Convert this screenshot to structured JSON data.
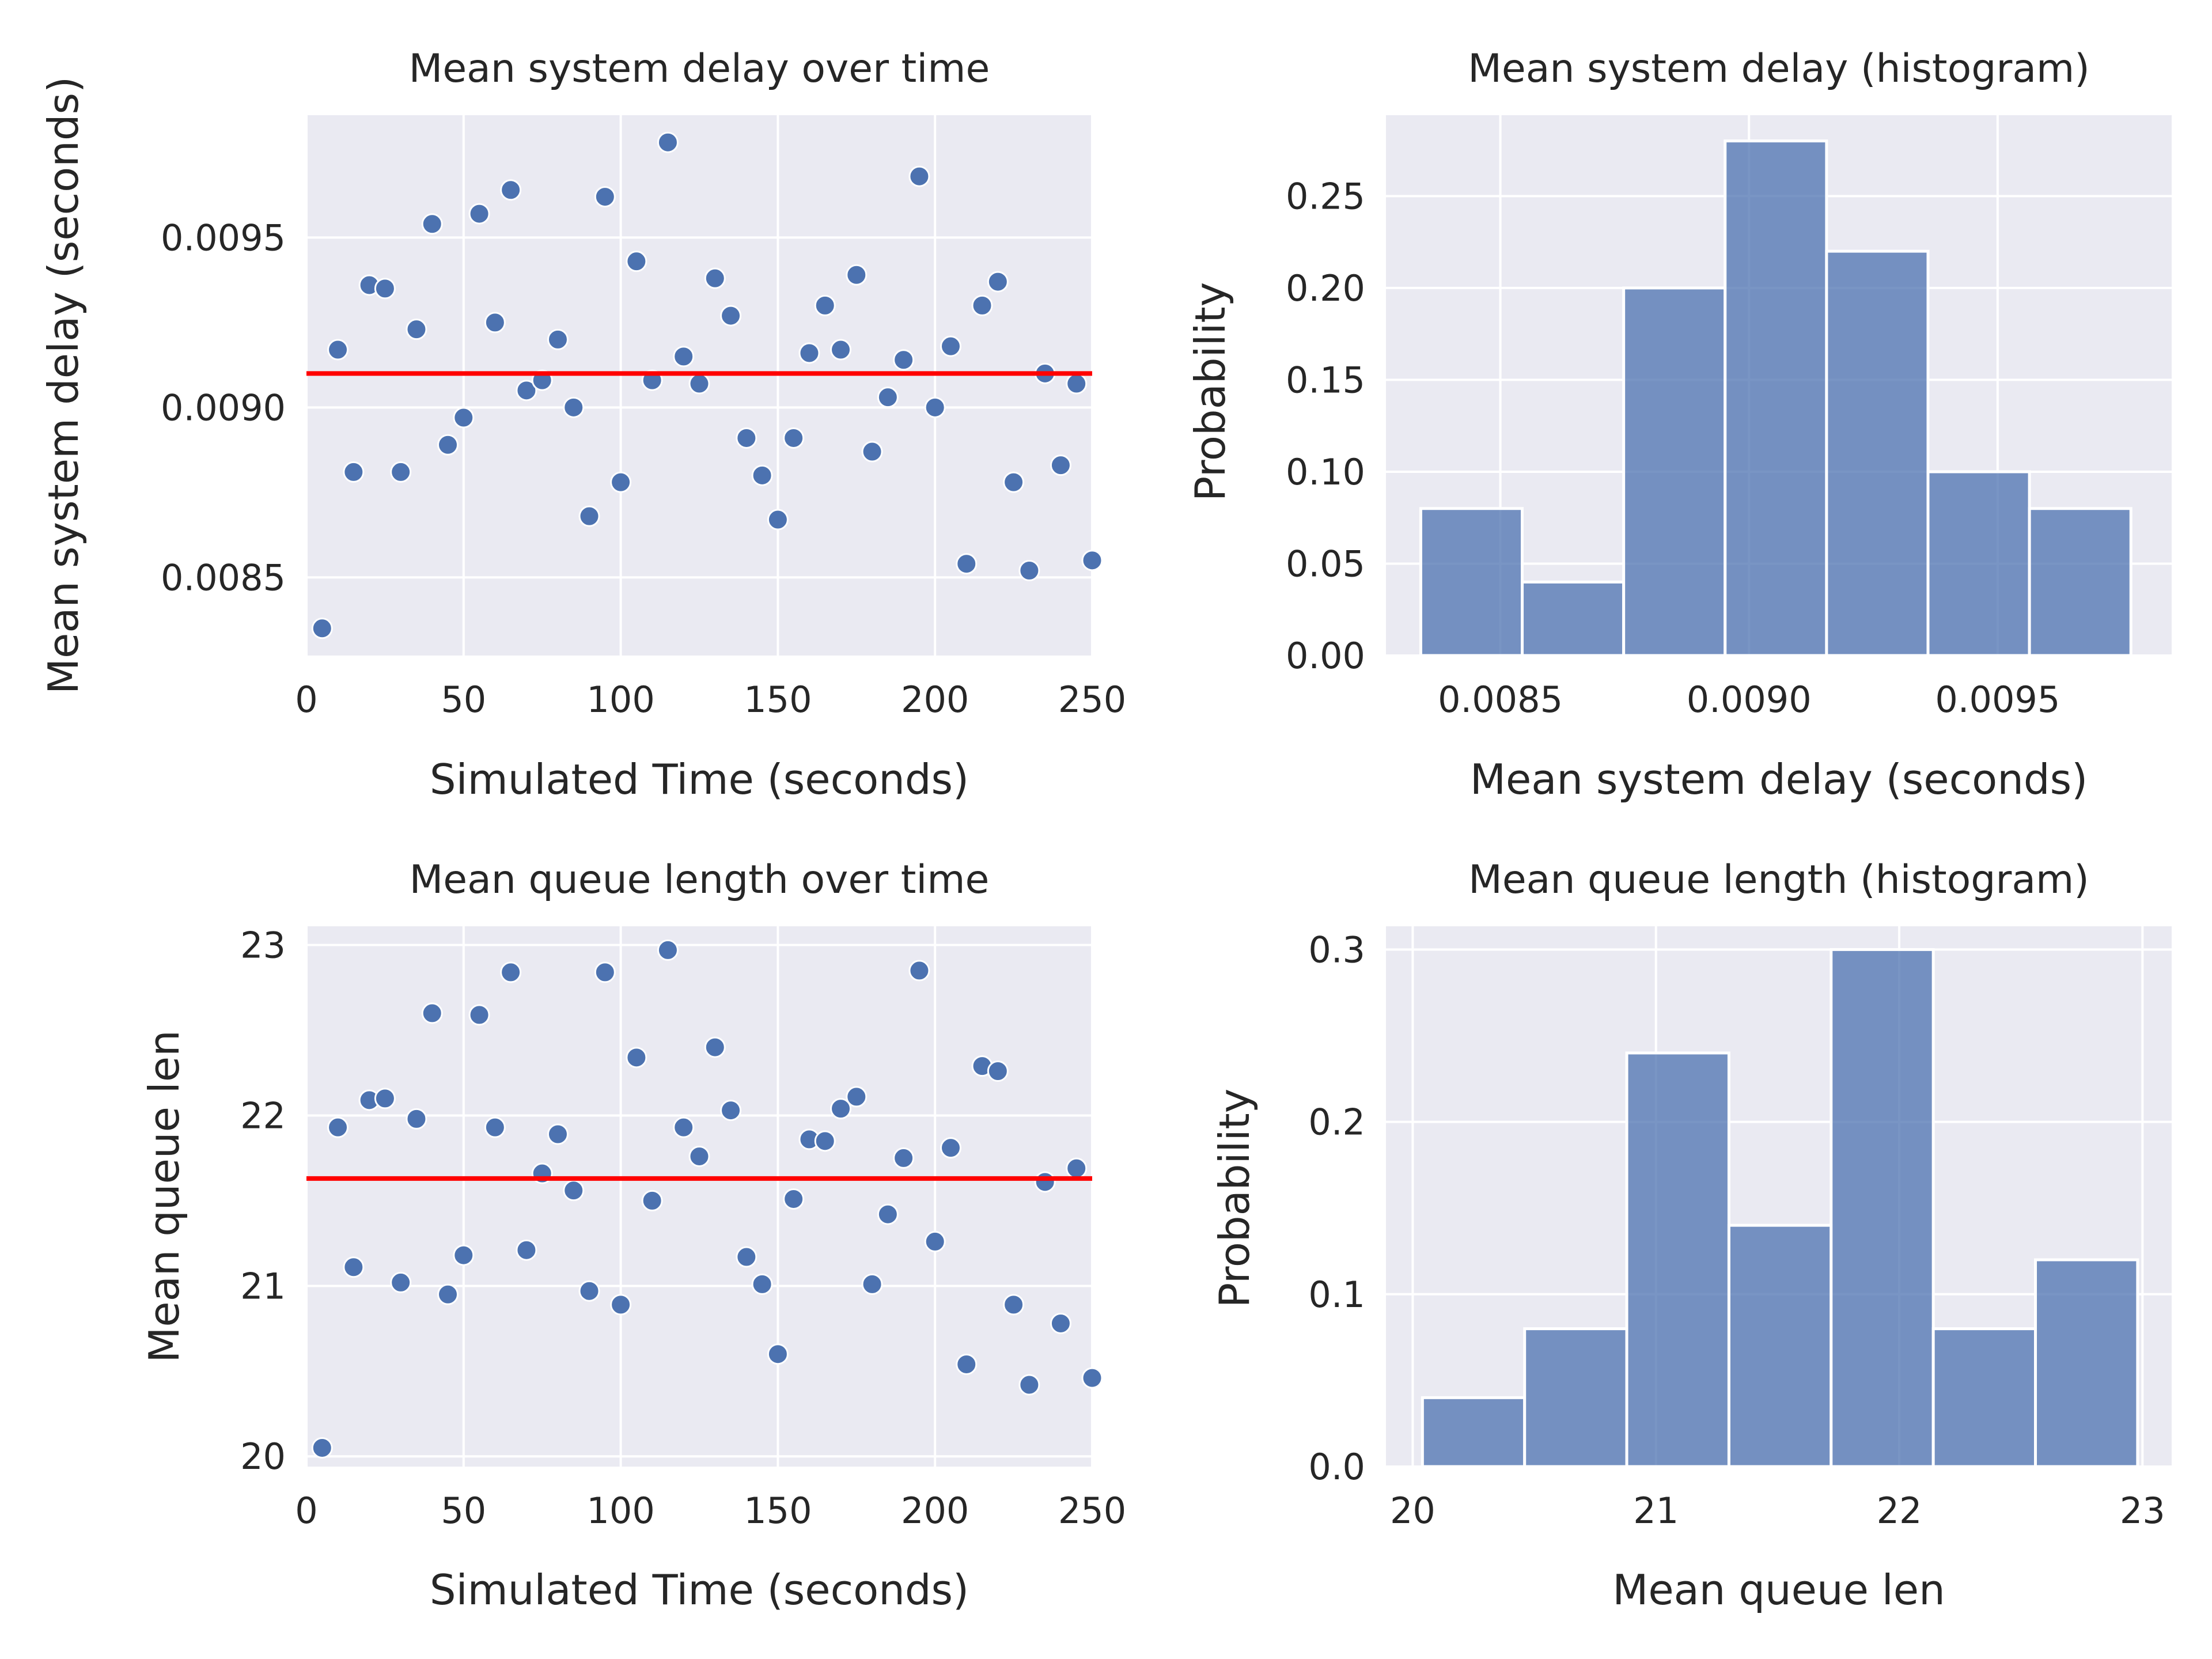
{
  "chart_data": [
    {
      "type": "scatter",
      "title": "Mean system delay over time",
      "xlabel": "Simulated Time (seconds)",
      "ylabel": "Mean system delay (seconds)",
      "xlim": [
        0,
        250
      ],
      "ylim": [
        0.00827,
        0.00986
      ],
      "xticks": [
        0,
        50,
        100,
        150,
        200,
        250
      ],
      "xtick_labels": [
        "0",
        "50",
        "100",
        "150",
        "200",
        "250"
      ],
      "yticks": [
        0.0085,
        0.009,
        0.0095
      ],
      "ytick_labels": [
        "0.0085",
        "0.0090",
        "0.0095"
      ],
      "grid": true,
      "point_color": "#4c72b0",
      "mean_line": {
        "y": 0.0091,
        "color": "#ff0000"
      },
      "x": [
        5,
        10,
        15,
        20,
        25,
        30,
        35,
        40,
        45,
        50,
        55,
        60,
        65,
        70,
        75,
        80,
        85,
        90,
        95,
        100,
        105,
        110,
        115,
        120,
        125,
        130,
        135,
        140,
        145,
        150,
        155,
        160,
        165,
        170,
        175,
        180,
        185,
        190,
        195,
        200,
        205,
        210,
        215,
        220,
        225,
        230,
        235,
        240,
        245,
        250
      ],
      "y": [
        0.00835,
        0.00917,
        0.00881,
        0.00936,
        0.00935,
        0.00881,
        0.00923,
        0.00954,
        0.00889,
        0.00897,
        0.00957,
        0.00925,
        0.00964,
        0.00905,
        0.00908,
        0.0092,
        0.009,
        0.00868,
        0.00962,
        0.00878,
        0.00943,
        0.00908,
        0.00978,
        0.00915,
        0.00907,
        0.00938,
        0.00927,
        0.00891,
        0.0088,
        0.00867,
        0.00891,
        0.00916,
        0.0093,
        0.00917,
        0.00939,
        0.00887,
        0.00903,
        0.00914,
        0.00968,
        0.009,
        0.00918,
        0.00854,
        0.0093,
        0.00937,
        0.00878,
        0.00852,
        0.0091,
        0.00883,
        0.00907,
        0.00855
      ]
    },
    {
      "type": "bar",
      "title": "Mean system delay (histogram)",
      "xlabel": "Mean system delay (seconds)",
      "ylabel": "Probability",
      "xlim": [
        0.00827,
        0.00985
      ],
      "ylim": [
        0,
        0.294
      ],
      "xticks": [
        0.0085,
        0.009,
        0.0095
      ],
      "xtick_labels": [
        "0.0085",
        "0.0090",
        "0.0095"
      ],
      "yticks": [
        0,
        0.05,
        0.1,
        0.15,
        0.2,
        0.25
      ],
      "ytick_labels": [
        "0.00",
        "0.05",
        "0.10",
        "0.15",
        "0.20",
        "0.25"
      ],
      "grid": true,
      "bar_color": "#4c72b0",
      "bin_edges": [
        0.00834,
        0.008544,
        0.008748,
        0.008952,
        0.009156,
        0.00936,
        0.009564,
        0.009768
      ],
      "values": [
        0.08,
        0.04,
        0.2,
        0.28,
        0.22,
        0.1,
        0.08
      ]
    },
    {
      "type": "scatter",
      "title": "Mean queue length over time",
      "xlabel": "Simulated Time (seconds)",
      "ylabel": "Mean queue len",
      "xlim": [
        0,
        250
      ],
      "ylim": [
        19.94,
        23.11
      ],
      "xticks": [
        0,
        50,
        100,
        150,
        200,
        250
      ],
      "xtick_labels": [
        "0",
        "50",
        "100",
        "150",
        "200",
        "250"
      ],
      "yticks": [
        20,
        21,
        22,
        23
      ],
      "ytick_labels": [
        "20",
        "21",
        "22",
        "23"
      ],
      "grid": true,
      "point_color": "#4c72b0",
      "mean_line": {
        "y": 21.63,
        "color": "#ff0000"
      },
      "x": [
        5,
        10,
        15,
        20,
        25,
        30,
        35,
        40,
        45,
        50,
        55,
        60,
        65,
        70,
        75,
        80,
        85,
        90,
        95,
        100,
        105,
        110,
        115,
        120,
        125,
        130,
        135,
        140,
        145,
        150,
        155,
        160,
        165,
        170,
        175,
        180,
        185,
        190,
        195,
        200,
        205,
        210,
        215,
        220,
        225,
        230,
        235,
        240,
        245,
        250
      ],
      "y": [
        20.05,
        21.93,
        21.11,
        22.09,
        22.1,
        21.02,
        21.98,
        22.6,
        20.95,
        21.18,
        22.59,
        21.93,
        22.84,
        21.21,
        21.66,
        21.89,
        21.56,
        20.97,
        22.84,
        20.89,
        22.34,
        21.5,
        22.97,
        21.93,
        21.76,
        22.4,
        22.03,
        21.17,
        21.01,
        20.6,
        21.51,
        21.86,
        21.85,
        22.04,
        22.11,
        21.01,
        21.42,
        21.75,
        22.85,
        21.26,
        21.81,
        20.54,
        22.29,
        22.26,
        20.89,
        20.42,
        21.61,
        20.78,
        21.69,
        20.46
      ]
    },
    {
      "type": "bar",
      "title": "Mean queue length (histogram)",
      "xlabel": "Mean queue len",
      "ylabel": "Probability",
      "xlim": [
        19.89,
        23.12
      ],
      "ylim": [
        0,
        0.3135
      ],
      "xticks": [
        20,
        21,
        22,
        23
      ],
      "xtick_labels": [
        "20",
        "21",
        "22",
        "23"
      ],
      "yticks": [
        0,
        0.1,
        0.2,
        0.3
      ],
      "ytick_labels": [
        "0.0",
        "0.1",
        "0.2",
        "0.3"
      ],
      "grid": true,
      "bar_color": "#4c72b0",
      "bin_edges": [
        20.04,
        20.46,
        20.88,
        21.3,
        21.72,
        22.14,
        22.56,
        22.98
      ],
      "values": [
        0.04,
        0.08,
        0.24,
        0.14,
        0.3,
        0.08,
        0.12
      ]
    }
  ]
}
